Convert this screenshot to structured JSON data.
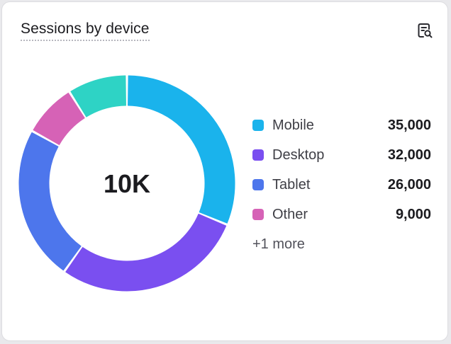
{
  "card": {
    "title": "Sessions by device",
    "insight_icon": "search-document-icon"
  },
  "chart_data": {
    "type": "pie",
    "variant": "donut",
    "center_label": "10K",
    "slices": [
      {
        "name": "Mobile",
        "value": 35000,
        "display": "35,000",
        "color": "#1ab3ec"
      },
      {
        "name": "Desktop",
        "value": 32000,
        "display": "32,000",
        "color": "#7a4ff0"
      },
      {
        "name": "Tablet",
        "value": 26000,
        "display": "26,000",
        "color": "#4d76ec"
      },
      {
        "name": "Other",
        "value": 9000,
        "display": "9,000",
        "color": "#d662b6"
      },
      {
        "name": "",
        "value": 10000,
        "display": "",
        "color": "#2ed3c5"
      }
    ],
    "legend_more": "+1 more",
    "legend_placement": "right"
  }
}
